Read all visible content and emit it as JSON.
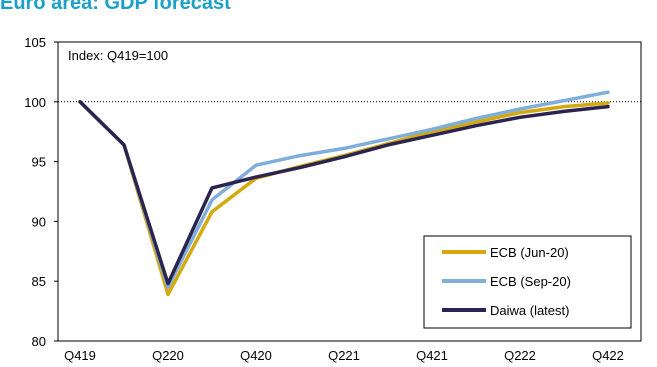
{
  "page": {
    "title": "Euro area: GDP forecast",
    "title_color": "#1BA1C8"
  },
  "chart_data": {
    "type": "line",
    "title": "Euro area: GDP forecast",
    "xlabel": "",
    "ylabel": "",
    "annotation": "Index: Q419=100",
    "x": [
      "Q419",
      "Q120",
      "Q220",
      "Q320",
      "Q420",
      "Q121",
      "Q221",
      "Q321",
      "Q421",
      "Q122",
      "Q222",
      "Q322",
      "Q422"
    ],
    "x_tick_labels": [
      "Q419",
      "Q220",
      "Q420",
      "Q221",
      "Q421",
      "Q222",
      "Q422"
    ],
    "ylim": [
      80,
      105
    ],
    "y_ticks": [
      80,
      85,
      90,
      95,
      100,
      105
    ],
    "reference_line": {
      "y": 100,
      "style": "dotted"
    },
    "grid": false,
    "legend_position": "bottom-right",
    "series": [
      {
        "name": "ECB (Jun-20)",
        "color": "#D4A90E",
        "values": [
          100,
          96.4,
          83.9,
          90.8,
          93.6,
          94.6,
          95.5,
          96.5,
          97.5,
          98.3,
          99.1,
          99.6,
          99.9
        ]
      },
      {
        "name": "ECB (Sep-20)",
        "color": "#7FAEDB",
        "values": [
          100,
          96.4,
          84.5,
          91.8,
          94.7,
          95.5,
          96.1,
          96.9,
          97.7,
          98.6,
          99.4,
          100.1,
          100.8
        ]
      },
      {
        "name": "Daiwa (latest)",
        "color": "#2B2350",
        "values": [
          100,
          96.4,
          84.8,
          92.8,
          93.7,
          94.5,
          95.4,
          96.4,
          97.2,
          98.0,
          98.7,
          99.2,
          99.6
        ]
      }
    ]
  }
}
